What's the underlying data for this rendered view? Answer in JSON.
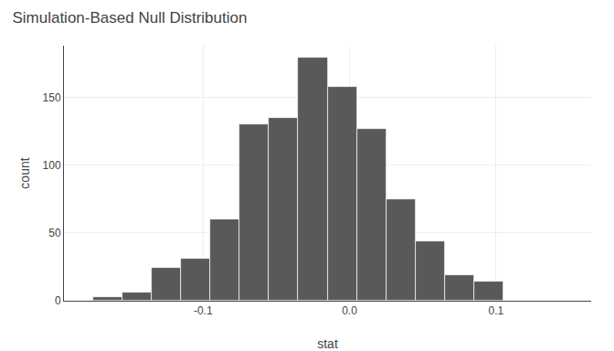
{
  "chart_data": {
    "type": "histogram",
    "title": "Simulation-Based Null Distribution",
    "xlabel": "stat",
    "ylabel": "count",
    "bins": [
      -0.175,
      -0.155,
      -0.135,
      -0.115,
      -0.095,
      -0.075,
      -0.055,
      -0.035,
      -0.015,
      0.005,
      0.025,
      0.045,
      0.065,
      0.085,
      0.105,
      0.125,
      0.145
    ],
    "values": [
      3,
      6,
      24,
      31,
      60,
      130,
      135,
      179,
      158,
      127,
      75,
      44,
      19,
      14,
      0,
      0
    ],
    "color": "#595959",
    "xlim": [
      -0.195,
      0.165
    ],
    "ylim": [
      0,
      188
    ],
    "xticks": [
      -0.1,
      {
        "value": 0,
        "label": "0.0"
      },
      0.1
    ],
    "yticks": [
      0,
      50,
      100,
      150
    ],
    "grid": true
  }
}
